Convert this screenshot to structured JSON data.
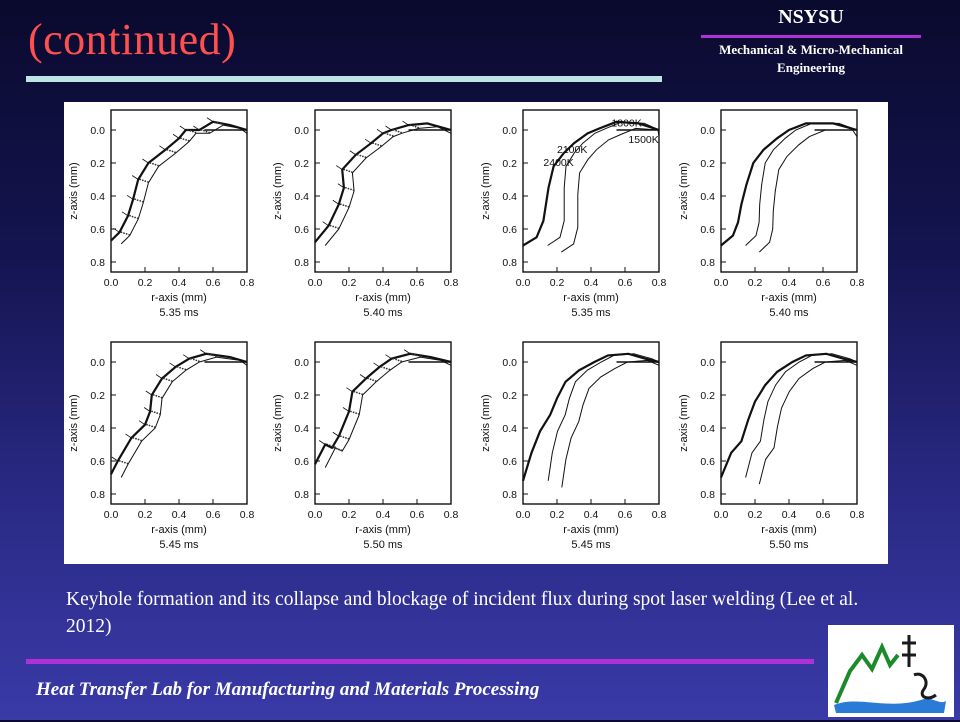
{
  "header": {
    "title": "(continued)",
    "university": "NSYSU",
    "department": "Mechanical & Micro-Mechanical Engineering"
  },
  "figure": {
    "yticks": [
      "0.0",
      "0.2",
      "0.4",
      "0.6",
      "0.8"
    ],
    "xticks": [
      "0.0",
      "0.2",
      "0.4",
      "0.6",
      "0.8"
    ],
    "ylabel": "z-axis (mm)",
    "xlabel": "r-axis (mm)",
    "panels": [
      {
        "time": "5.35 ms",
        "kind": "velocity",
        "show_xlabel": true
      },
      {
        "time": "5.40 ms",
        "kind": "velocity",
        "show_xlabel": true
      },
      {
        "time": "5.35 ms",
        "kind": "isotherm",
        "show_xlabel": true,
        "isotherms": [
          "1800K",
          "1500K",
          "2100K",
          "2400K"
        ]
      },
      {
        "time": "5.40 ms",
        "kind": "isotherm",
        "show_xlabel": true
      },
      {
        "time": "5.45 ms",
        "kind": "velocity",
        "show_xlabel": true
      },
      {
        "time": "5.50 ms",
        "kind": "velocity",
        "show_xlabel": true
      },
      {
        "time": "5.45 ms",
        "kind": "isotherm",
        "show_xlabel": true
      },
      {
        "time": "5.50 ms",
        "kind": "isotherm",
        "show_xlabel": true
      }
    ]
  },
  "caption": "Keyhole formation and its collapse and blockage of incident flux during spot laser welding (Lee et al. 2012)",
  "footer": "Heat Transfer Lab for Manufacturing and Materials Processing",
  "colors": {
    "title": "#ff5050",
    "rule_cyan": "#bfe3e6",
    "rule_purple": "#b030d8"
  },
  "logo": {
    "icon": "university-emblem-icon"
  }
}
